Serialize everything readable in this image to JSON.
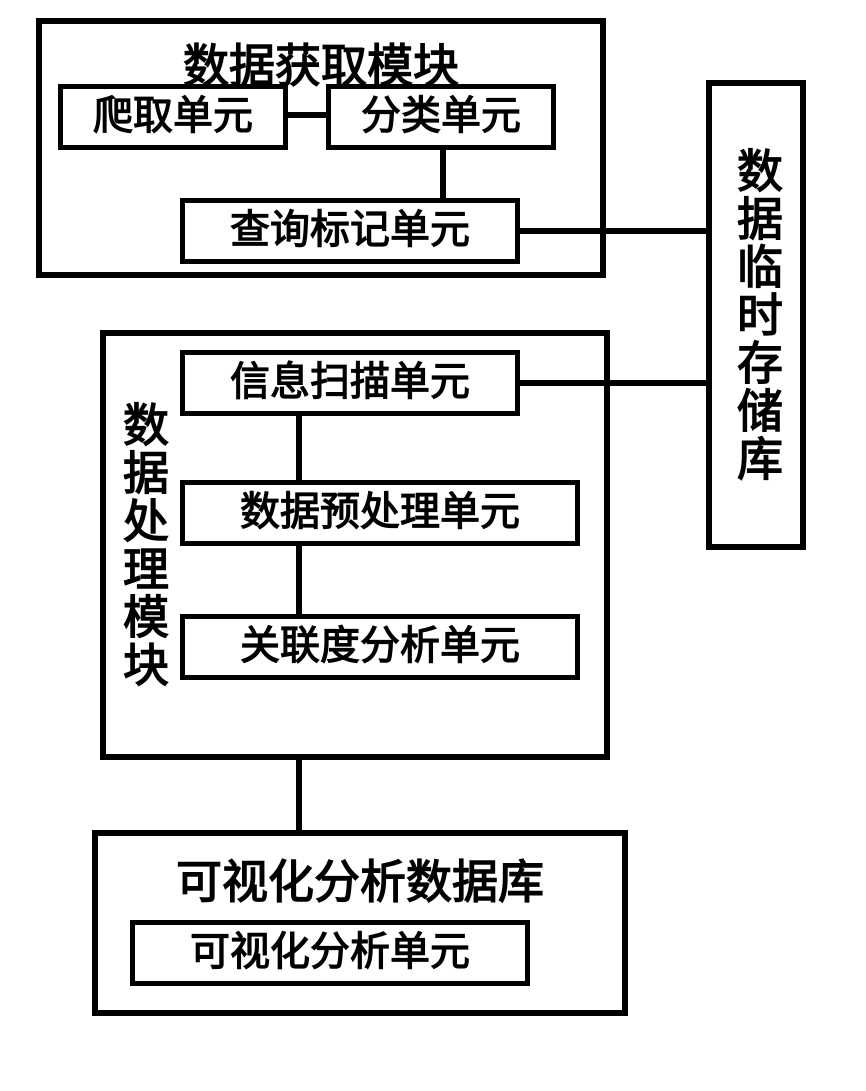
{
  "diagram": {
    "type": "flowchart",
    "background_color": "#ffffff",
    "border_color": "#000000",
    "border_width_outer": 6,
    "border_width_inner": 5,
    "font_family": "SimSun",
    "font_weight": "bold",
    "title_fontsize": 46,
    "unit_fontsize": 40,
    "text_color": "#000000"
  },
  "mod1": {
    "title": "数据获取模块",
    "crawl": "爬取单元",
    "classify": "分类单元",
    "query": "查询标记单元"
  },
  "store": {
    "title": "数据临时存储库"
  },
  "mod2": {
    "title": "数据处理模块",
    "scan": "信息扫描单元",
    "pre": "数据预处理单元",
    "corr": "关联度分析单元"
  },
  "mod3": {
    "title": "可视化分析数据库",
    "unit": "可视化分析单元"
  },
  "edges": [
    {
      "from": "mod1.crawl",
      "to": "mod1.classify"
    },
    {
      "from": "mod1.classify",
      "to": "mod1.query"
    },
    {
      "from": "mod1.query",
      "to": "store"
    },
    {
      "from": "store",
      "to": "mod2.scan"
    },
    {
      "from": "mod2.scan",
      "to": "mod2.pre"
    },
    {
      "from": "mod2.pre",
      "to": "mod2.corr"
    },
    {
      "from": "mod2",
      "to": "mod3"
    }
  ]
}
